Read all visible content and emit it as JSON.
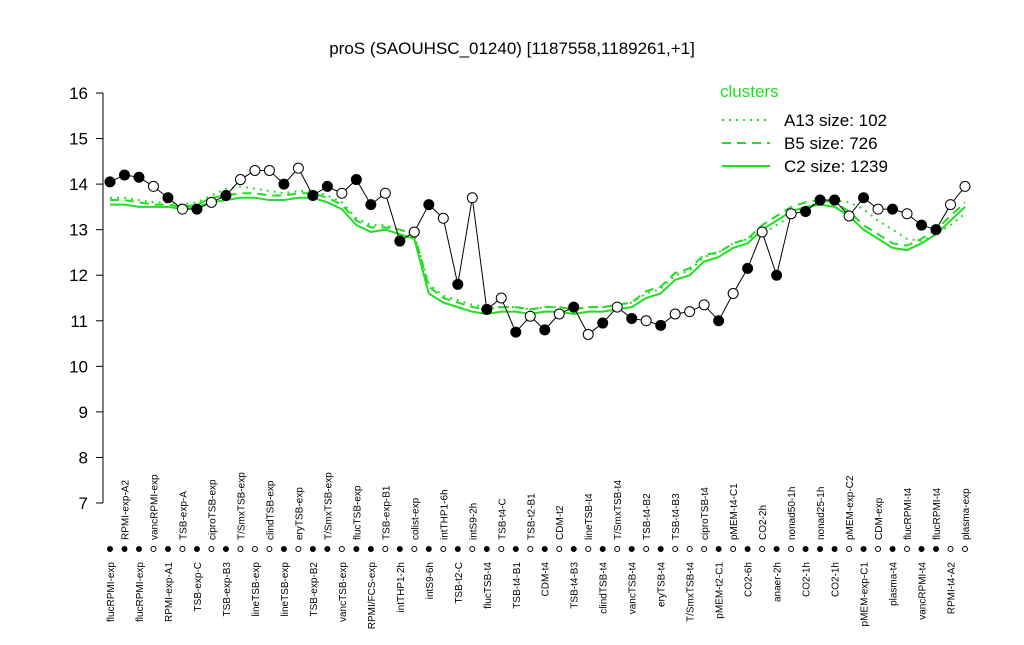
{
  "chart_data": {
    "type": "line",
    "title": "proS (SAOUHSC_01240) [1187558,1189261,+1]",
    "legend_title": "clusters",
    "legend_position": "top-right",
    "ylim": [
      7,
      16
    ],
    "yticks": [
      7,
      8,
      9,
      10,
      11,
      12,
      13,
      14,
      15,
      16
    ],
    "categories": [
      "flucRPMI-exp",
      "RPMI-exp-A2",
      "flucRPMI-exp",
      "vancRPMI-exp",
      "RPMI-exp-A1",
      "TSB-exp-A",
      "TSB-exp-C",
      "ciproTSB-exp",
      "TSB-exp-B3",
      "T/SmxTSB-exp",
      "lineTSB-exp",
      "clindTSB-exp",
      "lineTSB-exp",
      "eryTSB-exp",
      "TSB-exp-B2",
      "T/SmxTSB-exp",
      "vancTSB-exp",
      "flucTSB-exp",
      "RPMI/FCS-exp",
      "TSB-exp-B1",
      "intTHP1-2h",
      "colist-exp",
      "intS9-6h",
      "intTHP1-6h",
      "TSB-t2-C",
      "intS9-2h",
      "flucTSB-t4",
      "TSB-t4-C",
      "TSB-t4-B1",
      "TSB-t2-B1",
      "CDM-t4",
      "CDM-t2",
      "TSB-t4-B3",
      "lineTSB-t4",
      "clindTSB-t4",
      "T/SmxTSB-t4",
      "vancTSB-t4",
      "TSB-t4-B2",
      "eryTSB-t4",
      "TSB-t4-B3",
      "T/SmxTSB-t4",
      "ciproTSB-t4",
      "pMEM-t2-C1",
      "pMEM-t4-C1",
      "CO2-6h",
      "CO2-2h",
      "anaer-2h",
      "nonad50-1h",
      "CO2-1h",
      "nonad25-1h",
      "CO2-1h",
      "pMEM-exp-C2",
      "pMEM-exp-C1",
      "CDM-exp",
      "plasma-t4",
      "flucRPMI-t4",
      "vancRPMI-t4",
      "flucRPMI-t4",
      "RPMI-t4-A2",
      "plasma-exp"
    ],
    "points": {
      "values": [
        14.05,
        14.2,
        14.15,
        13.95,
        13.7,
        13.45,
        13.45,
        13.6,
        13.75,
        14.1,
        14.3,
        14.3,
        14.0,
        14.35,
        13.75,
        13.95,
        13.8,
        14.1,
        13.55,
        13.8,
        12.75,
        12.95,
        13.55,
        13.25,
        11.8,
        13.7,
        11.25,
        11.5,
        10.75,
        11.1,
        10.8,
        11.15,
        11.3,
        10.7,
        10.95,
        11.3,
        11.05,
        11.0,
        10.9,
        11.15,
        11.2,
        11.35,
        11.0,
        11.6,
        12.15,
        12.95,
        12.0,
        13.35,
        13.4,
        13.65,
        13.65,
        13.3,
        13.7,
        13.45,
        13.45,
        13.35,
        13.1,
        13.0,
        13.55,
        13.95
      ],
      "filled": [
        true,
        true,
        true,
        false,
        true,
        false,
        true,
        false,
        true,
        false,
        false,
        false,
        true,
        false,
        true,
        true,
        false,
        true,
        true,
        false,
        true,
        false,
        true,
        false,
        true,
        false,
        true,
        false,
        true,
        false,
        true,
        false,
        true,
        false,
        true,
        false,
        true,
        false,
        true,
        false,
        false,
        false,
        true,
        false,
        true,
        false,
        true,
        false,
        true,
        true,
        true,
        false,
        true,
        false,
        true,
        false,
        true,
        true,
        false,
        false
      ]
    },
    "series": [
      {
        "name": "A13 size: 102",
        "color": "#22dd22",
        "dash": "dotted",
        "values": [
          13.7,
          13.7,
          13.65,
          13.6,
          13.6,
          13.55,
          13.6,
          13.75,
          13.9,
          13.95,
          13.9,
          13.85,
          13.8,
          13.85,
          13.85,
          13.75,
          13.6,
          13.25,
          13.1,
          13.1,
          13.0,
          12.9,
          11.8,
          11.55,
          11.45,
          11.35,
          11.3,
          11.3,
          11.3,
          11.25,
          11.3,
          11.3,
          11.25,
          11.3,
          11.3,
          11.35,
          11.4,
          11.6,
          11.7,
          12.0,
          12.1,
          12.4,
          12.5,
          12.7,
          12.8,
          12.9,
          13.1,
          13.3,
          13.5,
          13.6,
          13.65,
          13.6,
          13.45,
          13.2,
          13.0,
          12.8,
          12.75,
          12.9,
          13.1,
          13.35
        ]
      },
      {
        "name": "B5 size: 726",
        "color": "#22dd22",
        "dash": "dashed",
        "values": [
          13.65,
          13.65,
          13.6,
          13.55,
          13.55,
          13.5,
          13.55,
          13.7,
          13.75,
          13.8,
          13.8,
          13.75,
          13.75,
          13.8,
          13.8,
          13.7,
          13.55,
          13.2,
          13.05,
          13.05,
          13.0,
          12.9,
          11.75,
          11.5,
          11.4,
          11.3,
          11.25,
          11.3,
          11.3,
          11.25,
          11.3,
          11.3,
          11.25,
          11.3,
          11.3,
          11.35,
          11.4,
          11.65,
          11.75,
          12.05,
          12.15,
          12.45,
          12.5,
          12.7,
          12.8,
          13.1,
          13.3,
          13.5,
          13.6,
          13.65,
          13.6,
          13.4,
          13.1,
          12.9,
          12.7,
          12.65,
          12.8,
          13.0,
          13.3,
          13.6
        ]
      },
      {
        "name": "C2 size: 1239",
        "color": "#22dd22",
        "dash": "solid",
        "values": [
          13.55,
          13.55,
          13.5,
          13.5,
          13.5,
          13.45,
          13.5,
          13.6,
          13.65,
          13.7,
          13.7,
          13.65,
          13.65,
          13.7,
          13.7,
          13.6,
          13.45,
          13.1,
          12.95,
          13.0,
          12.9,
          12.8,
          11.6,
          11.4,
          11.3,
          11.2,
          11.15,
          11.2,
          11.2,
          11.15,
          11.2,
          11.2,
          11.15,
          11.2,
          11.2,
          11.25,
          11.3,
          11.5,
          11.6,
          11.9,
          12.0,
          12.3,
          12.4,
          12.6,
          12.7,
          13.0,
          13.2,
          13.4,
          13.5,
          13.55,
          13.5,
          13.3,
          13.0,
          12.8,
          12.6,
          12.55,
          12.7,
          12.9,
          13.2,
          13.5
        ]
      }
    ]
  }
}
